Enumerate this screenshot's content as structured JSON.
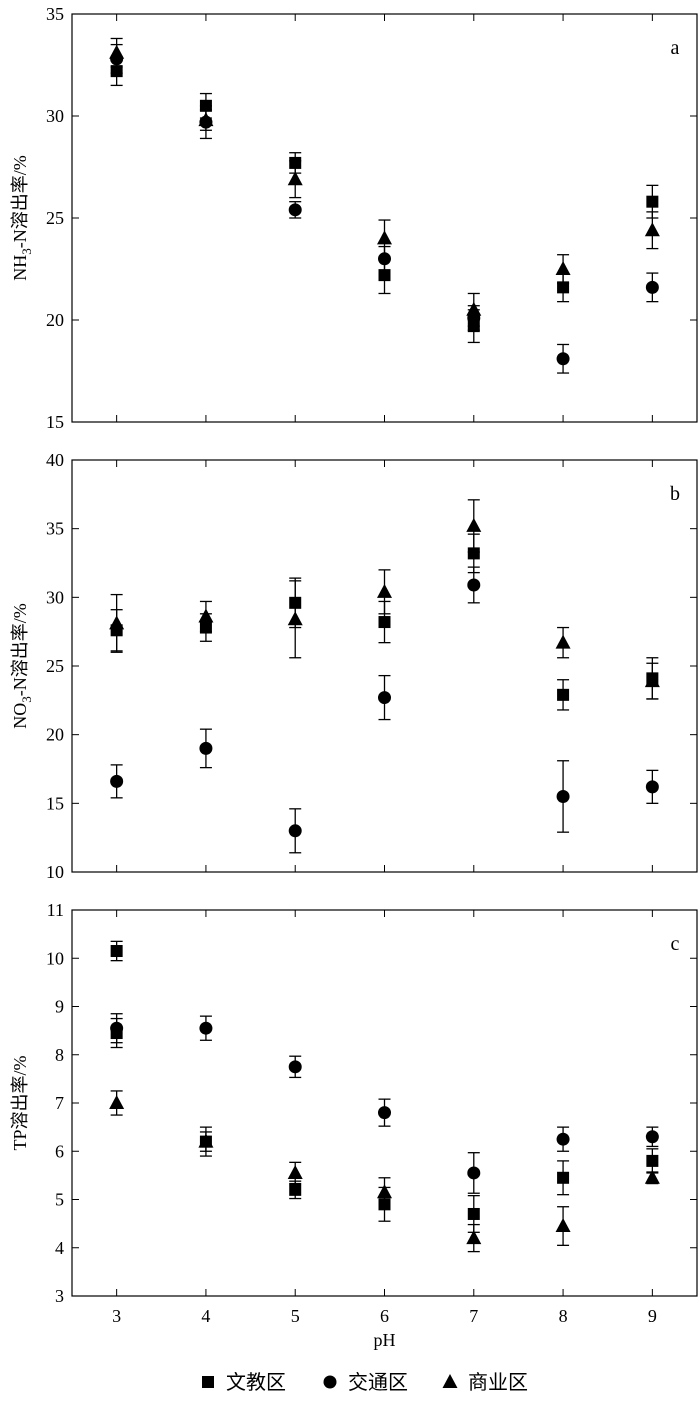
{
  "chart_data": [
    {
      "type": "scatter",
      "panel": "a",
      "ylabel": "NH3-N溶出率/%",
      "ylabel_main": "NH",
      "ylabel_sub": "3",
      "ylabel_rest": "-N溶出率/%",
      "ylim": [
        15,
        35
      ],
      "yticks": [
        15,
        20,
        25,
        30,
        35
      ],
      "x": [
        3,
        4,
        5,
        6,
        7,
        8,
        9
      ],
      "series": [
        {
          "name": "文教区",
          "marker": "square",
          "values": [
            32.2,
            30.5,
            27.7,
            22.2,
            19.7,
            21.6,
            25.8
          ],
          "errors": [
            0.7,
            0.6,
            0.5,
            0.9,
            0.8,
            0.7,
            0.8
          ]
        },
        {
          "name": "交通区",
          "marker": "circle",
          "values": [
            32.8,
            29.7,
            25.4,
            23.0,
            20.1,
            18.1,
            21.6
          ],
          "errors": [
            0.7,
            0.8,
            0.4,
            0.6,
            0.6,
            0.7,
            0.7
          ]
        },
        {
          "name": "商业区",
          "marker": "triangle",
          "values": [
            33.1,
            29.8,
            26.9,
            24.0,
            20.5,
            22.5,
            24.4
          ],
          "errors": [
            0.7,
            0.5,
            0.9,
            0.9,
            0.8,
            0.7,
            0.9
          ]
        }
      ]
    },
    {
      "type": "scatter",
      "panel": "b",
      "ylabel": "NO3-N溶出率/%",
      "ylabel_main": "NO",
      "ylabel_sub": "3",
      "ylabel_rest": "-N溶出率/%",
      "ylim": [
        10,
        40
      ],
      "yticks": [
        10,
        15,
        20,
        25,
        30,
        35,
        40
      ],
      "x": [
        3,
        4,
        5,
        6,
        7,
        8,
        9
      ],
      "series": [
        {
          "name": "文教区",
          "marker": "square",
          "values": [
            27.6,
            27.8,
            29.6,
            28.2,
            33.2,
            22.9,
            24.1
          ],
          "errors": [
            1.5,
            1.0,
            1.8,
            1.5,
            1.4,
            1.1,
            1.5
          ]
        },
        {
          "name": "交通区",
          "marker": "circle",
          "values": [
            16.6,
            19.0,
            13.0,
            22.7,
            30.9,
            15.5,
            16.2
          ],
          "errors": [
            1.2,
            1.4,
            1.6,
            1.6,
            1.3,
            2.6,
            1.2
          ]
        },
        {
          "name": "商业区",
          "marker": "triangle",
          "values": [
            28.1,
            28.6,
            28.4,
            30.4,
            35.2,
            26.7,
            23.9
          ],
          "errors": [
            2.1,
            1.1,
            2.8,
            1.6,
            1.9,
            1.1,
            1.3
          ]
        }
      ]
    },
    {
      "type": "scatter",
      "panel": "c",
      "ylabel": "TP溶出率/%",
      "ylabel_main": "TP溶出率/%",
      "ylabel_sub": "",
      "ylabel_rest": "",
      "xlabel": "pH",
      "ylim": [
        3,
        11
      ],
      "yticks": [
        3,
        4,
        5,
        6,
        7,
        8,
        9,
        10,
        11
      ],
      "x": [
        3,
        4,
        5,
        6,
        7,
        8,
        9
      ],
      "series": [
        {
          "name": "文教区",
          "marker": "square",
          "values": [
            10.15,
            6.2,
            5.2,
            4.9,
            4.7,
            5.45,
            5.8
          ],
          "errors": [
            0.2,
            0.3,
            0.18,
            0.35,
            0.38,
            0.35,
            0.25
          ]
        },
        {
          "name": "交通区",
          "marker": "circle",
          "values": [
            8.55,
            8.55,
            7.75,
            6.8,
            5.55,
            6.25,
            6.3
          ],
          "errors": [
            0.3,
            0.25,
            0.22,
            0.28,
            0.42,
            0.25,
            0.2
          ]
        },
        {
          "name": "商业区",
          "marker": "triangle",
          "values": [
            7.0,
            6.2,
            5.55,
            5.15,
            4.2,
            4.45,
            5.45
          ],
          "errors": [
            0.25,
            0.2,
            0.22,
            0.3,
            0.28,
            0.4,
            0.12
          ]
        },
        {
          "name": "文教区",
          "marker": "square",
          "values": [
            8.45
          ],
          "x": [
            3
          ],
          "errors": [
            0.3
          ]
        }
      ]
    }
  ],
  "xlabel": "pH",
  "legend": {
    "placement": "bottom",
    "items": [
      {
        "name": "文教区",
        "marker": "square"
      },
      {
        "name": "交通区",
        "marker": "circle"
      },
      {
        "name": "商业区",
        "marker": "triangle"
      }
    ]
  }
}
